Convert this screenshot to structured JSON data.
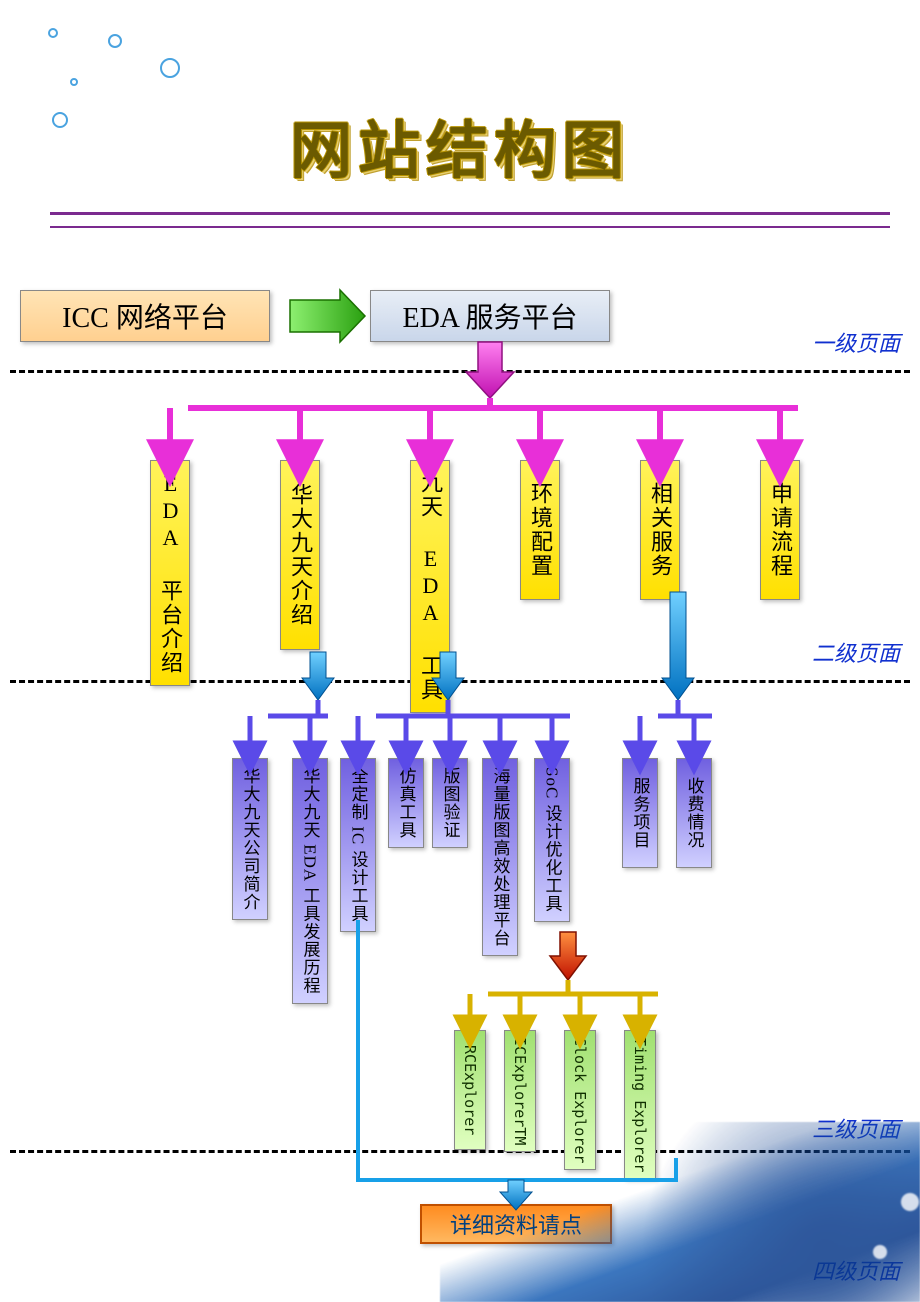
{
  "title": "网站结构图",
  "colors": {
    "title_text": "#6b5a00",
    "title_underline": "#7b2a8f",
    "level_label": "#1030cf",
    "divider": "#000000",
    "box_icc_bg_from": "#ffe4b5",
    "box_icc_bg_to": "#ffd090",
    "box_eda_bg_from": "#e8eef6",
    "box_eda_bg_to": "#c9d6ea",
    "arrow_green": "#4cd03a",
    "arrow_magenta": "#e82fd8",
    "arrow_cyan": "#18a0e8",
    "arrow_purple": "#5a4ae8",
    "arrow_red": "#e02a10",
    "arrow_gold": "#d8b200",
    "l2_box_from": "#fff35a",
    "l2_box_to": "#ffe000",
    "l3_box_from": "#7060e0",
    "l3_box_to": "#d0d0ff",
    "l4_box_from": "#a0e070",
    "l4_box_to": "#e0ffc0",
    "final_box_from": "#ff8c20",
    "final_box_to": "#ffb860",
    "final_text": "#004080"
  },
  "level_labels": {
    "l1": "一级页面",
    "l2": "二级页面",
    "l3": "三级页面",
    "l4": "四级页面"
  },
  "level1": {
    "icc": "ICC 网络平台",
    "eda": "EDA 服务平台"
  },
  "level2": [
    "EDA 平台介绍",
    "华大九天介绍",
    "九天 EDA 工具",
    "环境配置",
    "相关服务",
    "申请流程"
  ],
  "level3_group_b": [
    "华大九天公司简介",
    "华大九天 EDA 工具发展历程"
  ],
  "level3_group_c": [
    "全定制 IC 设计工具",
    "仿真工具",
    "版图验证",
    "海量版图高效处理平台",
    "SoC 设计优化工具"
  ],
  "level3_group_e": [
    "服务项目",
    "收费情况"
  ],
  "level4_soc": [
    "RCExplorer",
    "ICExplorerTM",
    "Clock Explorer",
    "Timing Explorer"
  ],
  "final_box": "详细资料请点",
  "layout": {
    "l2_x": [
      170,
      300,
      430,
      540,
      660,
      780
    ],
    "l3b_x": [
      250,
      310
    ],
    "l3c_x": [
      358,
      406,
      450,
      500,
      552
    ],
    "l3e_x": [
      640,
      694
    ],
    "l4_x": [
      470,
      520,
      580,
      640
    ]
  }
}
